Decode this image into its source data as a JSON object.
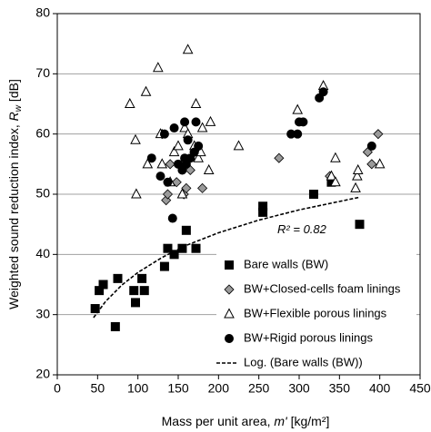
{
  "chart_data": {
    "type": "scatter",
    "x_label": [
      "Mass per unit area, ",
      "m'",
      " [kg/m²]"
    ],
    "y_label": [
      "Weighted sound reduction index, ",
      "R",
      "w",
      " [dB]"
    ],
    "xlim": [
      0,
      450
    ],
    "xticks": [
      0,
      50,
      100,
      150,
      200,
      250,
      300,
      350,
      400,
      450
    ],
    "ylim": [
      20,
      80
    ],
    "yticks": [
      20,
      30,
      40,
      50,
      60,
      70,
      80
    ],
    "grid": true,
    "legend": "lower right",
    "annotation": {
      "text": "R² = 0.82",
      "x": 273,
      "y": 44
    },
    "series": [
      {
        "name": "Bare walls (BW)",
        "marker": "square",
        "color": "#000000",
        "x": [
          47,
          52,
          57,
          72,
          75,
          95,
          97,
          105,
          108,
          133,
          137,
          145,
          155,
          160,
          172,
          255,
          255,
          318,
          340,
          375
        ],
        "y": [
          31,
          34,
          35,
          28,
          36,
          34,
          32,
          36,
          34,
          38,
          41,
          40,
          41,
          44,
          41,
          48,
          47,
          50,
          52,
          45
        ]
      },
      {
        "name": "BW+Closed-cells foam linings",
        "marker": "diamond",
        "color": "#9a9a9a",
        "x": [
          130,
          135,
          137,
          140,
          148,
          157,
          160,
          165,
          170,
          180,
          275,
          338,
          385,
          390,
          398
        ],
        "y": [
          60,
          49,
          50,
          55,
          52,
          50,
          51,
          54,
          57,
          51,
          56,
          53,
          57,
          55,
          60
        ]
      },
      {
        "name": "BW+Flexible porous linings",
        "marker": "triangle",
        "color": "#ffffff",
        "x": [
          90,
          97,
          98,
          110,
          112,
          125,
          128,
          130,
          140,
          145,
          150,
          155,
          158,
          162,
          162,
          170,
          172,
          175,
          178,
          180,
          188,
          190,
          225,
          298,
          330,
          340,
          345,
          345,
          370,
          372,
          373,
          400
        ],
        "y": [
          65,
          59,
          50,
          67,
          55,
          71,
          60,
          55,
          52,
          57,
          58,
          50,
          61,
          74,
          60,
          58,
          65,
          56,
          57,
          61,
          54,
          62,
          58,
          64,
          68,
          53,
          56,
          52,
          51,
          53,
          54,
          55
        ]
      },
      {
        "name": "BW+Rigid porous linings",
        "marker": "circle",
        "color": "#000000",
        "x": [
          117,
          128,
          133,
          137,
          143,
          145,
          150,
          155,
          158,
          158,
          160,
          162,
          165,
          170,
          172,
          175,
          290,
          298,
          300,
          305,
          325,
          330,
          390
        ],
        "y": [
          56,
          53,
          60,
          52,
          46,
          61,
          55,
          54,
          56,
          62,
          55,
          59,
          56,
          57,
          62,
          58,
          60,
          60,
          62,
          62,
          66,
          67,
          58
        ]
      },
      {
        "name": "Log. (Bare walls (BW))",
        "marker": "none",
        "line": "dashed",
        "color": "#000000",
        "x": [
          45,
          60,
          80,
          100,
          130,
          160,
          200,
          250,
          300,
          375
        ],
        "y": [
          29.5,
          32.2,
          34.9,
          37.0,
          39.5,
          41.5,
          43.6,
          45.7,
          47.4,
          49.5
        ]
      }
    ]
  }
}
